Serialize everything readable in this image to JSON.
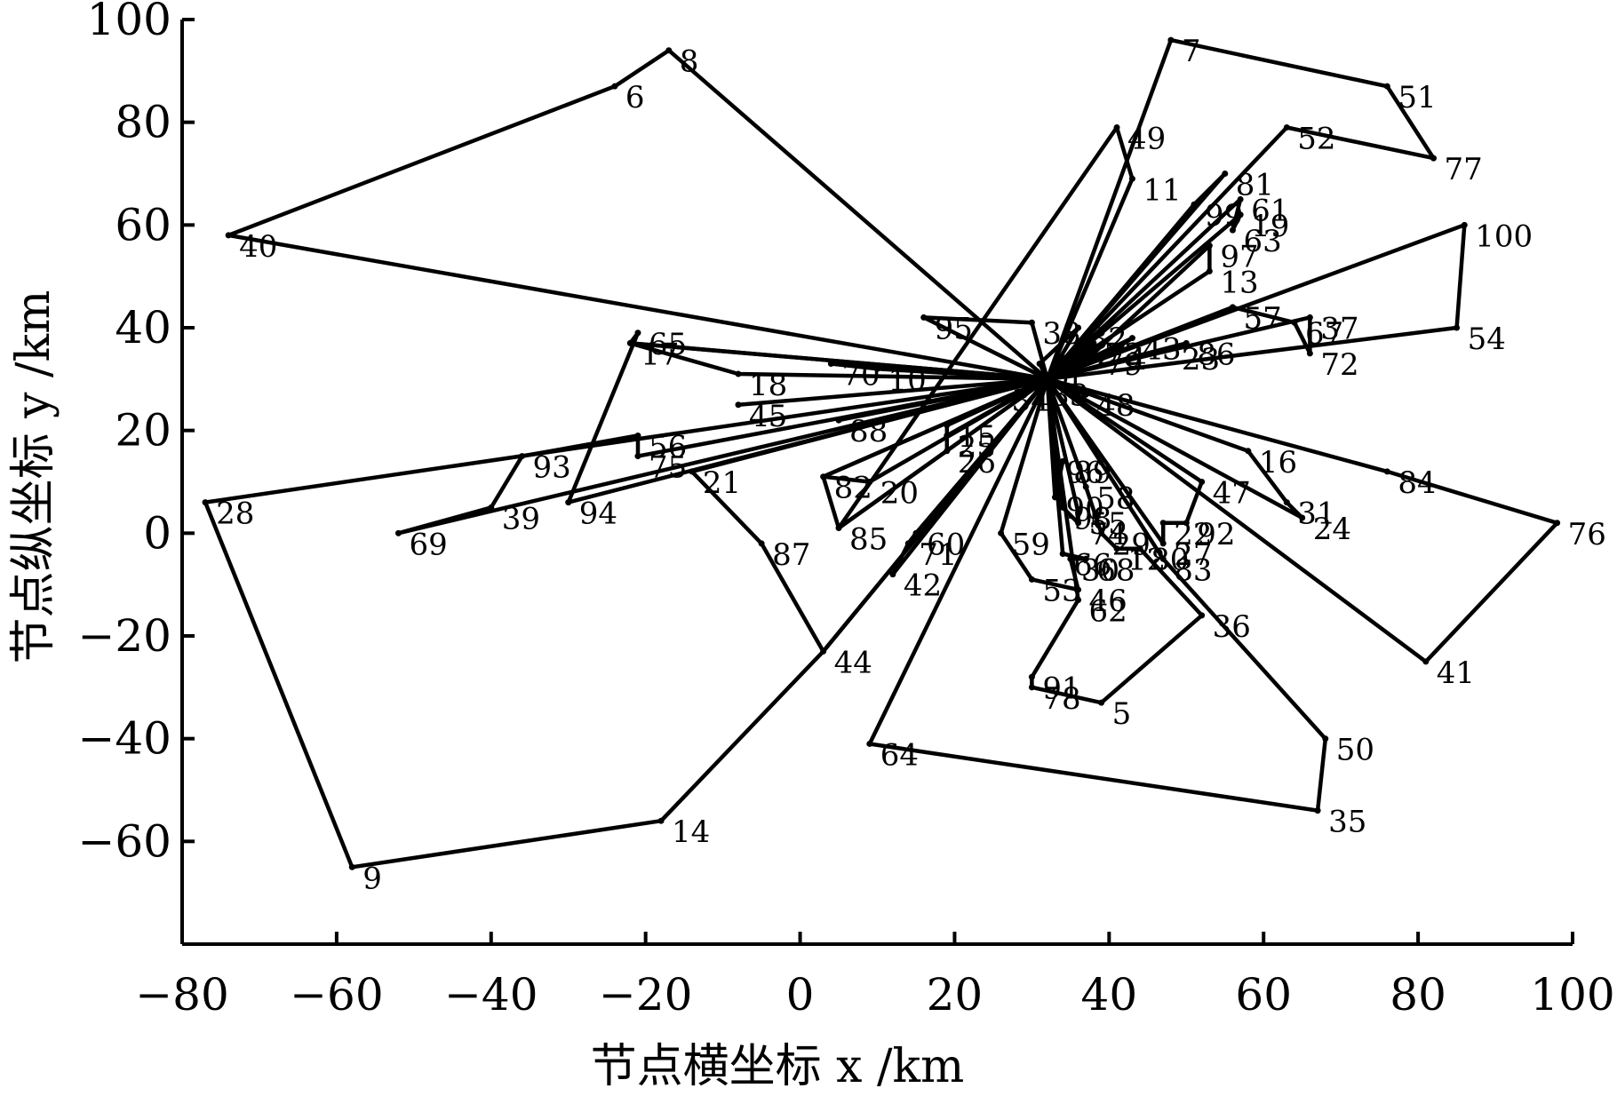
{
  "chart_data": {
    "type": "line",
    "xlabel": "节点横坐标 x /km",
    "ylabel": "节点纵坐标 y /km",
    "xlim": [
      -80,
      100
    ],
    "ylim": [
      -80,
      100
    ],
    "xticks": [
      -80,
      -60,
      -40,
      -20,
      0,
      20,
      40,
      60,
      80,
      100
    ],
    "yticks": [
      -60,
      -40,
      -20,
      0,
      20,
      40,
      60,
      80,
      100
    ],
    "depot": [
      32,
      30
    ],
    "nodes": [
      {
        "id": "1",
        "x": 33,
        "y": 33
      },
      {
        "id": "2",
        "x": 37,
        "y": 37
      },
      {
        "id": "3",
        "x": 31,
        "y": 33
      },
      {
        "id": "4",
        "x": 41,
        "y": 36
      },
      {
        "id": "5",
        "x": 39,
        "y": -33
      },
      {
        "id": "6",
        "x": -24,
        "y": 87
      },
      {
        "id": "7",
        "x": 48,
        "y": 96
      },
      {
        "id": "8",
        "x": -17,
        "y": 94
      },
      {
        "id": "9",
        "x": -58,
        "y": -65
      },
      {
        "id": "10",
        "x": 10,
        "y": 32
      },
      {
        "id": "11",
        "x": 43,
        "y": 69
      },
      {
        "id": "12",
        "x": 41,
        "y": -3
      },
      {
        "id": "13",
        "x": 53,
        "y": 51
      },
      {
        "id": "14",
        "x": -18,
        "y": -56
      },
      {
        "id": "15",
        "x": 19,
        "y": 21
      },
      {
        "id": "16",
        "x": 58,
        "y": 16
      },
      {
        "id": "17",
        "x": -22,
        "y": 37
      },
      {
        "id": "18",
        "x": -8,
        "y": 31
      },
      {
        "id": "19",
        "x": 57,
        "y": 62
      },
      {
        "id": "20",
        "x": 9,
        "y": 10
      },
      {
        "id": "21",
        "x": -14,
        "y": 12
      },
      {
        "id": "22",
        "x": 47,
        "y": 2
      },
      {
        "id": "23",
        "x": 48,
        "y": 36
      },
      {
        "id": "24",
        "x": 65,
        "y": 3
      },
      {
        "id": "25",
        "x": 19,
        "y": 19
      },
      {
        "id": "26",
        "x": 19,
        "y": 16
      },
      {
        "id": "27",
        "x": 47,
        "y": -2
      },
      {
        "id": "28",
        "x": -77,
        "y": 6
      },
      {
        "id": "29",
        "x": 39,
        "y": 0
      },
      {
        "id": "30",
        "x": 35,
        "y": -5
      },
      {
        "id": "31",
        "x": 63,
        "y": 6
      },
      {
        "id": "32",
        "x": 36,
        "y": 40
      },
      {
        "id": "33",
        "x": 31,
        "y": 29
      },
      {
        "id": "34",
        "x": 26,
        "y": 28
      },
      {
        "id": "35",
        "x": 67,
        "y": -54
      },
      {
        "id": "36",
        "x": 52,
        "y": -16
      },
      {
        "id": "37",
        "x": 66,
        "y": 42
      },
      {
        "id": "38",
        "x": 30,
        "y": 41
      },
      {
        "id": "39",
        "x": -40,
        "y": 5
      },
      {
        "id": "40",
        "x": -74,
        "y": 58
      },
      {
        "id": "41",
        "x": 81,
        "y": -25
      },
      {
        "id": "42",
        "x": 12,
        "y": -8
      },
      {
        "id": "43",
        "x": 43,
        "y": 38
      },
      {
        "id": "44",
        "x": 3,
        "y": -23
      },
      {
        "id": "45",
        "x": -8,
        "y": 25
      },
      {
        "id": "46",
        "x": 36,
        "y": -11
      },
      {
        "id": "47",
        "x": 52,
        "y": 10
      },
      {
        "id": "48",
        "x": 37,
        "y": 27
      },
      {
        "id": "49",
        "x": 41,
        "y": 79
      },
      {
        "id": "50",
        "x": 68,
        "y": -40
      },
      {
        "id": "51",
        "x": 76,
        "y": 87
      },
      {
        "id": "52",
        "x": 63,
        "y": 79
      },
      {
        "id": "53",
        "x": 30,
        "y": -9
      },
      {
        "id": "54",
        "x": 85,
        "y": 40
      },
      {
        "id": "55",
        "x": 36,
        "y": 4
      },
      {
        "id": "56",
        "x": -21,
        "y": 19
      },
      {
        "id": "57",
        "x": 56,
        "y": 44
      },
      {
        "id": "58",
        "x": 37,
        "y": 9
      },
      {
        "id": "59",
        "x": 26,
        "y": 0
      },
      {
        "id": "60",
        "x": 15,
        "y": 0
      },
      {
        "id": "61",
        "x": 57,
        "y": 65
      },
      {
        "id": "62",
        "x": 36,
        "y": -13
      },
      {
        "id": "63",
        "x": 56,
        "y": 59
      },
      {
        "id": "64",
        "x": 9,
        "y": -41
      },
      {
        "id": "65",
        "x": -21,
        "y": 39
      },
      {
        "id": "66",
        "x": 34,
        "y": -4
      },
      {
        "id": "67",
        "x": 64,
        "y": 41
      },
      {
        "id": "68",
        "x": 37,
        "y": -5
      },
      {
        "id": "69",
        "x": -52,
        "y": 0
      },
      {
        "id": "70",
        "x": 4,
        "y": 33
      },
      {
        "id": "71",
        "x": 14,
        "y": -2
      },
      {
        "id": "72",
        "x": 66,
        "y": 35
      },
      {
        "id": "73",
        "x": 38,
        "y": 37
      },
      {
        "id": "74",
        "x": 36,
        "y": 2
      },
      {
        "id": "75",
        "x": -21,
        "y": 15
      },
      {
        "id": "76",
        "x": 98,
        "y": 2
      },
      {
        "id": "77",
        "x": 82,
        "y": 73
      },
      {
        "id": "78",
        "x": 30,
        "y": -30
      },
      {
        "id": "79",
        "x": 38,
        "y": 35
      },
      {
        "id": "80",
        "x": 44,
        "y": -3
      },
      {
        "id": "81",
        "x": 55,
        "y": 70
      },
      {
        "id": "82",
        "x": 3,
        "y": 11
      },
      {
        "id": "83",
        "x": 47,
        "y": -5
      },
      {
        "id": "84",
        "x": 76,
        "y": 12
      },
      {
        "id": "85",
        "x": 5,
        "y": 1
      },
      {
        "id": "86",
        "x": 50,
        "y": 37
      },
      {
        "id": "87",
        "x": -5,
        "y": -2
      },
      {
        "id": "88",
        "x": 5,
        "y": 22
      },
      {
        "id": "89",
        "x": 34,
        "y": 14
      },
      {
        "id": "90",
        "x": 33,
        "y": 7
      },
      {
        "id": "91",
        "x": 30,
        "y": -28
      },
      {
        "id": "92",
        "x": 50,
        "y": 2
      },
      {
        "id": "93",
        "x": -36,
        "y": 15
      },
      {
        "id": "94",
        "x": -30,
        "y": 6
      },
      {
        "id": "95",
        "x": 16,
        "y": 42
      },
      {
        "id": "96",
        "x": 33,
        "y": 14
      },
      {
        "id": "97",
        "x": 53,
        "y": 56
      },
      {
        "id": "98",
        "x": 34,
        "y": 5
      },
      {
        "id": "99",
        "x": 51,
        "y": 64
      },
      {
        "id": "100",
        "x": 86,
        "y": 60
      }
    ],
    "routes": [
      [
        "40",
        "6",
        "8"
      ],
      [
        "69",
        "39",
        "93",
        "56",
        "75"
      ],
      [
        "28",
        "9",
        "14",
        "44"
      ],
      [
        "17",
        "65",
        "94"
      ],
      [
        "21",
        "87",
        "44"
      ],
      [
        "18",
        "17"
      ],
      [
        "70",
        "10"
      ],
      [
        "45"
      ],
      [
        "15",
        "26",
        "25"
      ],
      [
        "88"
      ],
      [
        "82",
        "20"
      ],
      [
        "85",
        "82"
      ],
      [
        "60",
        "71",
        "42"
      ],
      [
        "95",
        "38"
      ],
      [
        "3",
        "32"
      ],
      [
        "33"
      ],
      [
        "34"
      ],
      [
        "1",
        "2",
        "73"
      ],
      [
        "4",
        "43"
      ],
      [
        "23",
        "86"
      ],
      [
        "57",
        "67",
        "72",
        "37"
      ],
      [
        "54",
        "100"
      ],
      [
        "79",
        "97",
        "13"
      ],
      [
        "19",
        "63",
        "61"
      ],
      [
        "99",
        "81"
      ],
      [
        "11",
        "49",
        "85"
      ],
      [
        "7",
        "51",
        "77",
        "52"
      ],
      [
        "48"
      ],
      [
        "16",
        "31",
        "24"
      ],
      [
        "84",
        "76",
        "41"
      ],
      [
        "47",
        "92",
        "22",
        "27"
      ],
      [
        "83",
        "50",
        "35",
        "64"
      ],
      [
        "58",
        "29",
        "12",
        "80",
        "36",
        "5",
        "78",
        "91",
        "62"
      ],
      [
        "59",
        "53",
        "46",
        "30",
        "68",
        "66"
      ],
      [
        "96",
        "89",
        "90"
      ],
      [
        "55",
        "74",
        "98"
      ]
    ]
  }
}
